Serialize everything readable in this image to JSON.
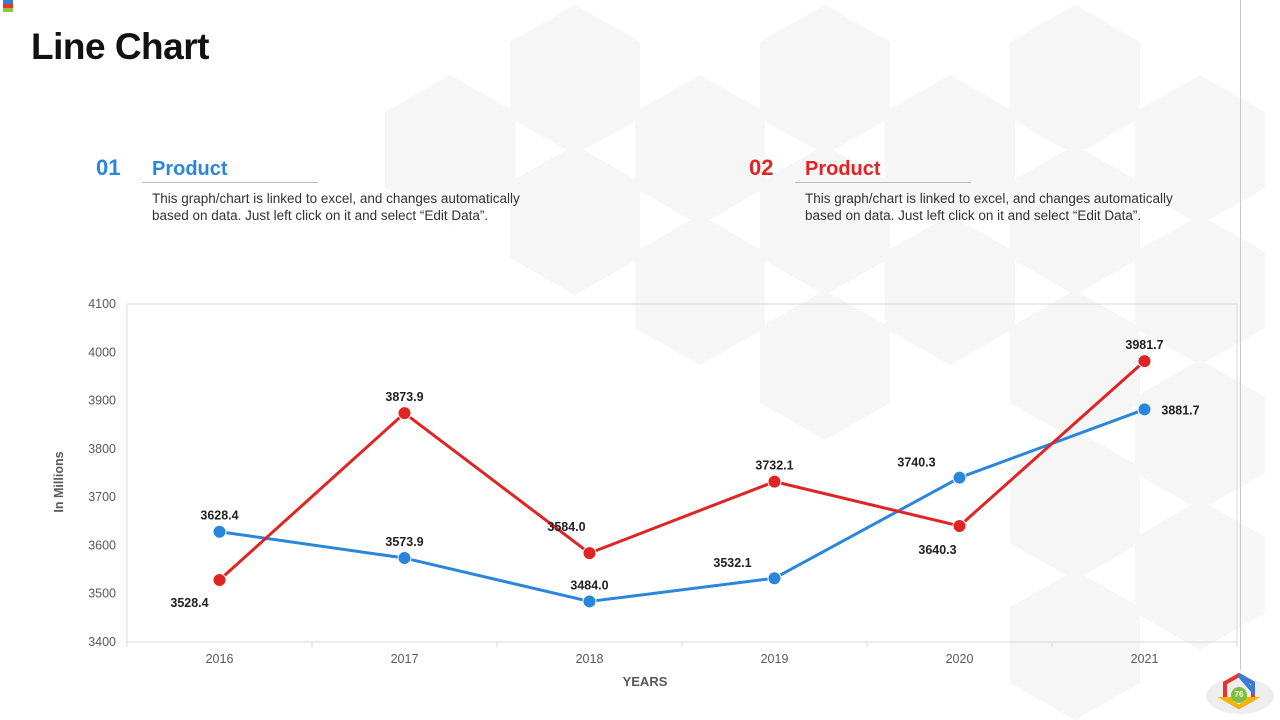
{
  "slide": {
    "title": "Line Chart",
    "page_number": "76"
  },
  "colors": {
    "series1": "#2a86dc",
    "series2": "#e02424",
    "corner": [
      "#3a7bd5",
      "#e8342c",
      "#8cc63f"
    ]
  },
  "products": [
    {
      "number": "01",
      "label": "Product",
      "description": "This graph/chart is linked to excel,  and changes automatically based on data. Just  left click  on it and select “Edit Data”.",
      "color": "#2a86dc"
    },
    {
      "number": "02",
      "label": "Product",
      "description": "This graph/chart is linked to excel,  and changes automatically based on data. Just  left click  on it and select “Edit Data”.",
      "color": "#e02424"
    }
  ],
  "chart_data": {
    "type": "line",
    "title": "",
    "xlabel": "YEARS",
    "ylabel": "In Millions",
    "categories": [
      "2016",
      "2017",
      "2018",
      "2019",
      "2020",
      "2021"
    ],
    "ylim": [
      3400,
      4100
    ],
    "yticks": [
      3400,
      3500,
      3600,
      3700,
      3800,
      3900,
      4000,
      4100
    ],
    "grid": false,
    "series": [
      {
        "name": "Product 01",
        "color": "#2a86dc",
        "values": [
          3628.4,
          3573.9,
          3484.0,
          3532.1,
          3740.3,
          3881.7
        ],
        "labels": [
          "3628.4",
          "3573.9",
          "3484.0",
          "3532.1",
          "3740.3",
          "3881.7"
        ]
      },
      {
        "name": "Product 02",
        "color": "#e02424",
        "values": [
          3528.4,
          3873.9,
          3584.0,
          3732.1,
          3640.3,
          3981.7
        ],
        "labels": [
          "3528.4",
          "3873.9",
          "3584.0",
          "3732.1",
          "3640.3",
          "3981.7"
        ]
      }
    ]
  }
}
